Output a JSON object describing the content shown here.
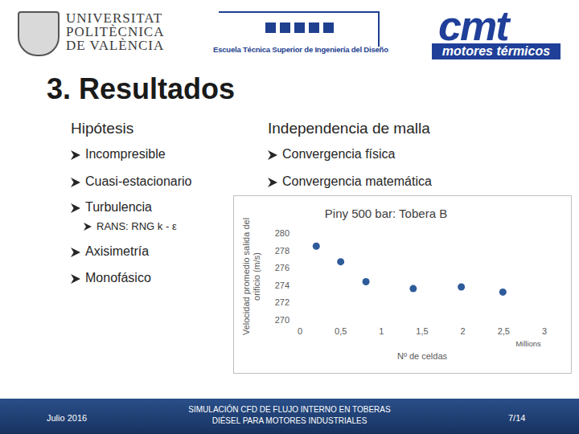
{
  "slide": {
    "logos": {
      "upv": [
        "UNIVERSITAT",
        "POLITÈCNICA",
        "DE VALÈNCIA"
      ],
      "etsid": "Escuela Técnica Superior de Ingeniería del Diseño",
      "cmt": "cmt",
      "cmt_sub": "motores térmicos"
    },
    "heading": "3. Resultados",
    "left": {
      "title": "Hipótesis",
      "items": [
        {
          "text": "Incompresible",
          "level": 1
        },
        {
          "text": "Cuasi-estacionario",
          "level": 1
        },
        {
          "text": "Turbulencia",
          "level": 1
        },
        {
          "text": "RANS: RNG k - ε",
          "level": 2
        },
        {
          "text": "Axisimetría",
          "level": 1
        },
        {
          "text": "Monofásico",
          "level": 1
        }
      ]
    },
    "right": {
      "title": "Independencia de malla",
      "items": [
        {
          "text": "Convergencia física",
          "level": 1
        },
        {
          "text": "Convergencia matemática",
          "level": 1
        }
      ]
    },
    "footer": {
      "date": "Julio 2016",
      "title": [
        "SIMULACIÓN CFD DE FLUJO INTERNO EN TOBERAS",
        "DIÉSEL PARA MOTORES INDUSTRIALES"
      ],
      "page": "7/14"
    }
  },
  "chart_data": {
    "type": "scatter",
    "title": "Piny 500 bar: Tobera B",
    "x_label": "Nº de celdas",
    "y_label": "Velocidad promedio salida del orificio (m/s)",
    "annotations": [
      "Millions"
    ],
    "x": [
      0.2,
      0.5,
      0.81,
      1.39,
      1.98,
      2.49
    ],
    "values": [
      278.5,
      276.7,
      274.4,
      273.6,
      273.8,
      273.2
    ],
    "color": "#2e5b9a",
    "marker": "circle",
    "xlim": [
      0,
      3
    ],
    "xticks": [
      0,
      {
        "value": 0.5,
        "label": "0,5"
      },
      1,
      {
        "value": 1.5,
        "label": "1,5"
      },
      2,
      {
        "value": 2.5,
        "label": "2,5"
      },
      3
    ],
    "ylim": [
      270,
      280
    ],
    "yticks": [
      270,
      272,
      274,
      276,
      278,
      280
    ],
    "grid": false
  }
}
